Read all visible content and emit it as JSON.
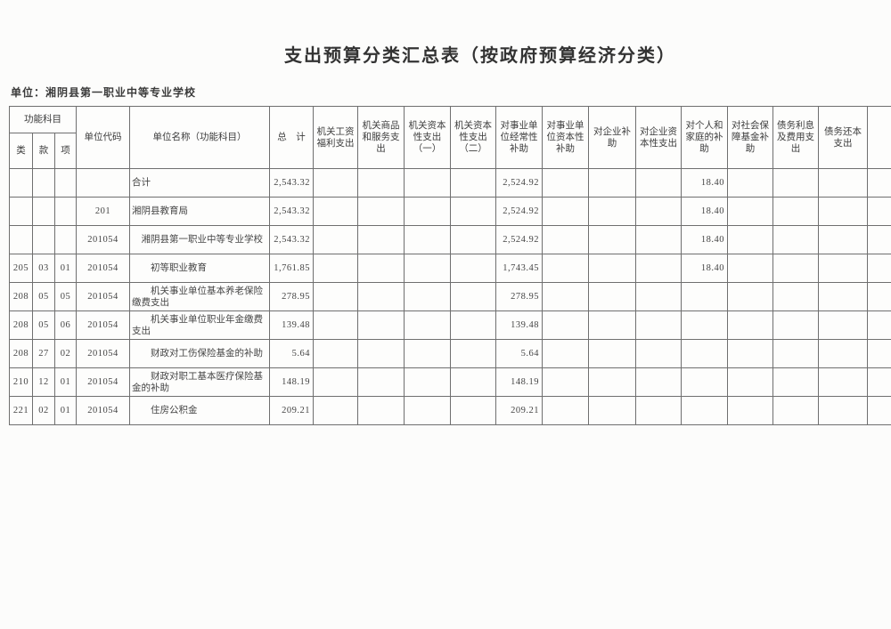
{
  "page": {
    "title": "支出预算分类汇总表（按政府预算经济分类）",
    "unit_label": "单位：湘阴县第一职业中等专业学校"
  },
  "table": {
    "header": {
      "func_group": "功能科目",
      "func_cols": [
        "类",
        "款",
        "项"
      ],
      "unit_code": "单位代码",
      "unit_name": "单位名称（功能科目）",
      "total": "总　计",
      "expense_cols": [
        "机关工资福利支出",
        "机关商品和服务支出",
        "机关资本性支出（一）",
        "机关资本性支出（二）",
        "对事业单位经常性补助",
        "对事业单位资本性补助",
        "对企业补助",
        "对企业资本性支出",
        "对个人和家庭的补助",
        "对社会保障基金补助",
        "债务利息及费用支出",
        "债务还本支出"
      ]
    },
    "rows": [
      {
        "lei": "",
        "kuan": "",
        "xiang": "",
        "code": "",
        "name": "合计",
        "indent": 0,
        "total": "2,543.32",
        "values": [
          "",
          "",
          "",
          "",
          "2,524.92",
          "",
          "",
          "",
          "18.40",
          "",
          "",
          ""
        ]
      },
      {
        "lei": "",
        "kuan": "",
        "xiang": "",
        "code": "201",
        "name": "湘阴县教育局",
        "indent": 0,
        "total": "2,543.32",
        "values": [
          "",
          "",
          "",
          "",
          "2,524.92",
          "",
          "",
          "",
          "18.40",
          "",
          "",
          ""
        ]
      },
      {
        "lei": "",
        "kuan": "",
        "xiang": "",
        "code": "201054",
        "name": "湘阴县第一职业中等专业学校",
        "indent": 1,
        "total": "2,543.32",
        "values": [
          "",
          "",
          "",
          "",
          "2,524.92",
          "",
          "",
          "",
          "18.40",
          "",
          "",
          ""
        ]
      },
      {
        "lei": "205",
        "kuan": "03",
        "xiang": "01",
        "code": "201054",
        "name": "初等职业教育",
        "indent": 2,
        "total": "1,761.85",
        "values": [
          "",
          "",
          "",
          "",
          "1,743.45",
          "",
          "",
          "",
          "18.40",
          "",
          "",
          ""
        ]
      },
      {
        "lei": "208",
        "kuan": "05",
        "xiang": "05",
        "code": "201054",
        "name": "机关事业单位基本养老保险缴费支出",
        "indent": 2,
        "total": "278.95",
        "values": [
          "",
          "",
          "",
          "",
          "278.95",
          "",
          "",
          "",
          "",
          "",
          "",
          ""
        ]
      },
      {
        "lei": "208",
        "kuan": "05",
        "xiang": "06",
        "code": "201054",
        "name": "机关事业单位职业年金缴费支出",
        "indent": 2,
        "total": "139.48",
        "values": [
          "",
          "",
          "",
          "",
          "139.48",
          "",
          "",
          "",
          "",
          "",
          "",
          ""
        ]
      },
      {
        "lei": "208",
        "kuan": "27",
        "xiang": "02",
        "code": "201054",
        "name": "财政对工伤保险基金的补助",
        "indent": 2,
        "total": "5.64",
        "values": [
          "",
          "",
          "",
          "",
          "5.64",
          "",
          "",
          "",
          "",
          "",
          "",
          ""
        ]
      },
      {
        "lei": "210",
        "kuan": "12",
        "xiang": "01",
        "code": "201054",
        "name": "财政对职工基本医疗保险基金的补助",
        "indent": 2,
        "total": "148.19",
        "values": [
          "",
          "",
          "",
          "",
          "148.19",
          "",
          "",
          "",
          "",
          "",
          "",
          ""
        ]
      },
      {
        "lei": "221",
        "kuan": "02",
        "xiang": "01",
        "code": "201054",
        "name": "住房公积金",
        "indent": 2,
        "total": "209.21",
        "values": [
          "",
          "",
          "",
          "",
          "209.21",
          "",
          "",
          "",
          "",
          "",
          "",
          ""
        ]
      }
    ]
  }
}
